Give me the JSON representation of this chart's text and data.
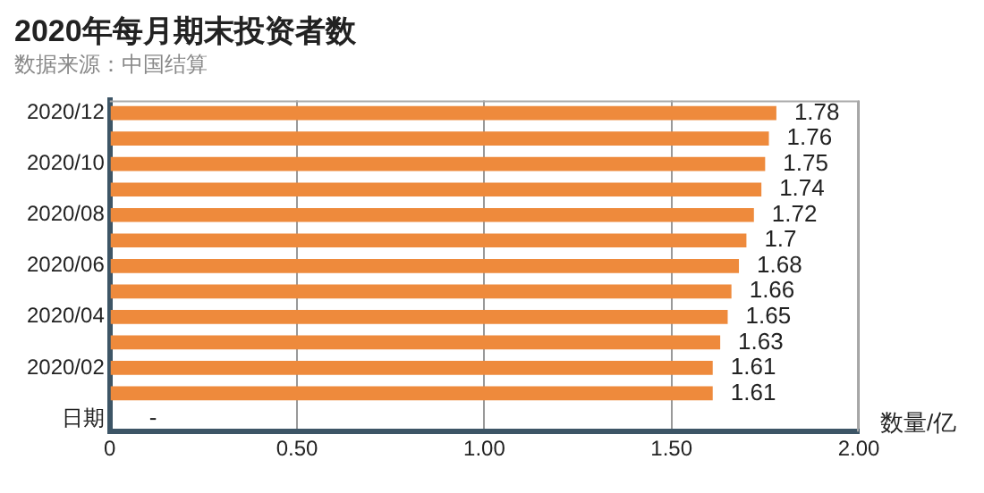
{
  "chart_data": {
    "type": "bar",
    "orientation": "horizontal",
    "title": "2020年每月期末投资者数",
    "subtitle": "数据来源：中国结算",
    "xlabel": "数量/亿",
    "categories": [
      "2020/12",
      null,
      "2020/10",
      null,
      "2020/08",
      null,
      "2020/06",
      null,
      "2020/04",
      null,
      "2020/02",
      null,
      "日期"
    ],
    "values": [
      1.78,
      1.76,
      1.75,
      1.74,
      1.72,
      1.7,
      1.68,
      1.66,
      1.65,
      1.63,
      1.61,
      1.61,
      null
    ],
    "value_labels": [
      "1.78",
      "1.76",
      "1.75",
      "1.74",
      "1.72",
      "1.7",
      "1.68",
      "1.66",
      "1.65",
      "1.63",
      "1.61",
      "1.61",
      "-"
    ],
    "color": "#ee8a3c",
    "xlim": [
      0,
      2
    ],
    "xticks": [
      0,
      {
        "value": 0.5,
        "label": "0.50"
      },
      {
        "value": 1,
        "label": "1.00"
      },
      {
        "value": 1.5,
        "label": "1.50"
      },
      {
        "value": 2,
        "label": "2.00"
      }
    ],
    "grid": "x",
    "legend": false
  }
}
